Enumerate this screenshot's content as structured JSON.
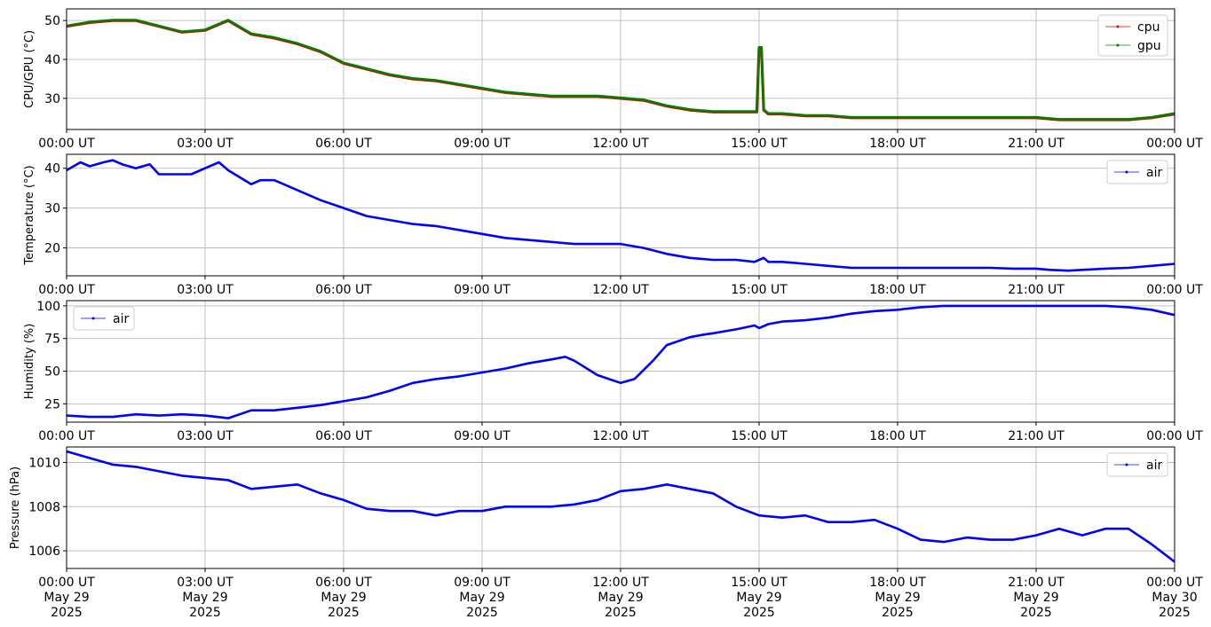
{
  "chart_data": [
    {
      "type": "line",
      "ylabel": "CPU/GPU (°C)",
      "xlim": [
        "00:00 UT",
        "00:00 UT"
      ],
      "ylim": [
        22,
        53
      ],
      "yticks": [
        30,
        40,
        50
      ],
      "grid": true,
      "legend_position": "top-right",
      "x_hours": [
        0,
        0.5,
        1,
        1.5,
        2,
        2.5,
        3,
        3.5,
        4,
        4.5,
        5,
        5.5,
        6,
        6.5,
        7,
        7.5,
        8,
        8.5,
        9,
        9.5,
        10,
        10.5,
        11,
        11.5,
        12,
        12.5,
        13,
        13.5,
        14,
        14.5,
        14.95,
        15.0,
        15.05,
        15.1,
        15.2,
        15.5,
        16,
        16.5,
        17,
        17.5,
        18,
        18.5,
        19,
        19.5,
        20,
        20.5,
        21,
        21.5,
        22,
        22.5,
        23,
        23.5,
        24
      ],
      "series": [
        {
          "name": "cpu",
          "color": "#e00000",
          "values": [
            48.5,
            49.5,
            50,
            50,
            48.5,
            47,
            47.5,
            50,
            46.5,
            45.5,
            44,
            42,
            39,
            37.5,
            36,
            35,
            34.5,
            33.5,
            32.5,
            31.5,
            31,
            30.5,
            30.5,
            30.5,
            30,
            29.5,
            28,
            27,
            26.5,
            26.5,
            26.5,
            43,
            43,
            27,
            26,
            26,
            25.5,
            25.5,
            25,
            25,
            25,
            25,
            25,
            25,
            25,
            25,
            25,
            24.5,
            24.5,
            24.5,
            24.5,
            25,
            26
          ]
        },
        {
          "name": "gpu",
          "color": "#008000",
          "values": [
            48.5,
            49.5,
            50,
            50,
            48.5,
            47,
            47.5,
            50,
            46.5,
            45.5,
            44,
            42,
            39,
            37.5,
            36,
            35,
            34.5,
            33.5,
            32.5,
            31.5,
            31,
            30.5,
            30.5,
            30.5,
            30,
            29.5,
            28,
            27,
            26.5,
            26.5,
            26.5,
            43,
            43,
            27,
            26,
            26,
            25.5,
            25.5,
            25,
            25,
            25,
            25,
            25,
            25,
            25,
            25,
            25,
            24.5,
            24.5,
            24.5,
            24.5,
            25,
            26
          ]
        }
      ]
    },
    {
      "type": "line",
      "ylabel": "Temperature (°C)",
      "xlim": [
        "00:00 UT",
        "00:00 UT"
      ],
      "ylim": [
        13,
        43.5
      ],
      "yticks": [
        20,
        30,
        40
      ],
      "grid": true,
      "legend_position": "top-right",
      "x_hours": [
        0,
        0.3,
        0.5,
        0.8,
        1,
        1.2,
        1.5,
        1.8,
        2,
        2.3,
        2.7,
        3,
        3.3,
        3.5,
        4,
        4.2,
        4.5,
        4.8,
        5.5,
        6,
        6.5,
        7,
        7.5,
        8,
        8.5,
        9,
        9.5,
        10,
        10.5,
        11,
        11.5,
        12,
        12.5,
        13,
        13.5,
        14,
        14.5,
        14.9,
        15.1,
        15.2,
        15.5,
        16,
        16.5,
        17,
        17.5,
        18,
        18.5,
        19,
        19.5,
        20,
        20.5,
        21,
        21.3,
        21.7,
        22,
        22.5,
        23,
        23.5,
        24
      ],
      "series": [
        {
          "name": "air",
          "color": "#0000ff",
          "values": [
            39.5,
            41.5,
            40.5,
            41.5,
            42,
            41,
            40,
            41,
            38.5,
            38.5,
            38.5,
            40,
            41.5,
            39.5,
            36,
            37,
            37,
            35.5,
            32,
            30,
            28,
            27,
            26,
            25.5,
            24.5,
            23.5,
            22.5,
            22,
            21.5,
            21,
            21,
            21,
            20,
            18.5,
            17.5,
            17,
            17,
            16.5,
            17.5,
            16.5,
            16.5,
            16,
            15.5,
            15,
            15,
            15,
            15,
            15,
            15,
            15,
            14.8,
            14.8,
            14.5,
            14.3,
            14.5,
            14.8,
            15,
            15.5,
            16
          ]
        }
      ]
    },
    {
      "type": "line",
      "ylabel": "Humidity (%)",
      "xlim": [
        "00:00 UT",
        "00:00 UT"
      ],
      "ylim": [
        11,
        104
      ],
      "yticks": [
        25,
        50,
        75,
        100
      ],
      "grid": true,
      "legend_position": "top-left",
      "x_hours": [
        0,
        0.5,
        1,
        1.5,
        2,
        2.5,
        3,
        3.5,
        4,
        4.5,
        5,
        5.5,
        6,
        6.5,
        7,
        7.5,
        8,
        8.5,
        9,
        9.5,
        10,
        10.5,
        10.8,
        11,
        11.5,
        12,
        12.3,
        12.7,
        13,
        13.5,
        13.8,
        14,
        14.5,
        14.9,
        15,
        15.2,
        15.5,
        16,
        16.5,
        17,
        17.5,
        18,
        18.5,
        19,
        19.5,
        20,
        20.5,
        21,
        21.5,
        22,
        22.5,
        23,
        23.5,
        24
      ],
      "series": [
        {
          "name": "air",
          "color": "#0000ff",
          "values": [
            16,
            15,
            15,
            17,
            16,
            17,
            16,
            14,
            20,
            20,
            22,
            24,
            27,
            30,
            35,
            41,
            44,
            46,
            49,
            52,
            56,
            59,
            61,
            58,
            47,
            41,
            44,
            58,
            70,
            76,
            78,
            79,
            82,
            85,
            83,
            86,
            88,
            89,
            91,
            94,
            96,
            97,
            99,
            100,
            100,
            100,
            100,
            100,
            100,
            100,
            100,
            99,
            97,
            93
          ]
        }
      ]
    },
    {
      "type": "line",
      "ylabel": "Pressure (hPa)",
      "xlim": [
        "00:00 UT May 29 2025",
        "00:00 UT May 30 2025"
      ],
      "ylim": [
        1005.2,
        1010.7
      ],
      "yticks": [
        1006,
        1008,
        1010
      ],
      "grid": true,
      "legend_position": "top-right",
      "x_hours": [
        0,
        0.5,
        1,
        1.5,
        2,
        2.5,
        3,
        3.5,
        4,
        4.5,
        5,
        5.5,
        6,
        6.5,
        7,
        7.5,
        8,
        8.5,
        9,
        9.5,
        10,
        10.5,
        11,
        11.5,
        12,
        12.5,
        13,
        13.5,
        14,
        14.5,
        15,
        15.5,
        16,
        16.5,
        17,
        17.5,
        18,
        18.5,
        19,
        19.5,
        20,
        20.5,
        21,
        21.5,
        22,
        22.5,
        23,
        23.5,
        24
      ],
      "series": [
        {
          "name": "air",
          "color": "#0000ff",
          "values": [
            1010.5,
            1010.2,
            1009.9,
            1009.8,
            1009.6,
            1009.4,
            1009.3,
            1009.2,
            1008.8,
            1008.9,
            1009.0,
            1008.6,
            1008.3,
            1007.9,
            1007.8,
            1007.8,
            1007.6,
            1007.8,
            1007.8,
            1008.0,
            1008.0,
            1008.0,
            1008.1,
            1008.3,
            1008.7,
            1008.8,
            1009.0,
            1008.8,
            1008.6,
            1008.0,
            1007.6,
            1007.5,
            1007.6,
            1007.3,
            1007.3,
            1007.4,
            1007.0,
            1006.5,
            1006.4,
            1006.6,
            1006.5,
            1006.5,
            1006.7,
            1007.0,
            1006.7,
            1007.0,
            1007.0,
            1006.3,
            1005.5
          ]
        }
      ]
    }
  ],
  "xticks": [
    "00:00 UT",
    "03:00 UT",
    "06:00 UT",
    "09:00 UT",
    "12:00 UT",
    "15:00 UT",
    "18:00 UT",
    "21:00 UT",
    "00:00 UT"
  ],
  "xticks_bottom": [
    [
      "00:00 UT",
      "May 29",
      "2025"
    ],
    [
      "03:00 UT",
      "May 29",
      "2025"
    ],
    [
      "06:00 UT",
      "May 29",
      "2025"
    ],
    [
      "09:00 UT",
      "May 29",
      "2025"
    ],
    [
      "12:00 UT",
      "May 29",
      "2025"
    ],
    [
      "15:00 UT",
      "May 29",
      "2025"
    ],
    [
      "18:00 UT",
      "May 29",
      "2025"
    ],
    [
      "21:00 UT",
      "May 29",
      "2025"
    ],
    [
      "00:00 UT",
      "May 30",
      "2025"
    ]
  ]
}
